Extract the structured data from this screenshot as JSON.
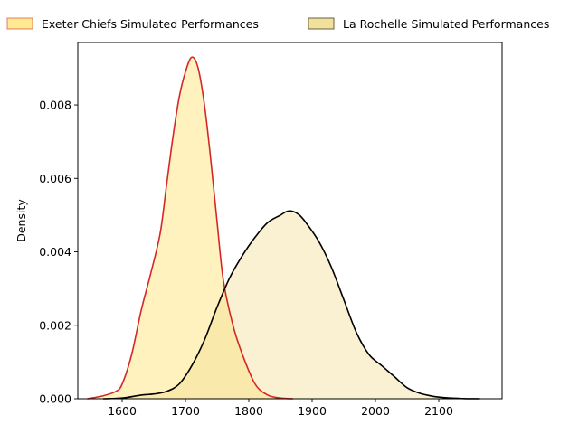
{
  "chart_data": {
    "type": "area",
    "title": "",
    "xlabel": "",
    "ylabel": "Density",
    "xlim": [
      1530,
      2200
    ],
    "ylim": [
      0,
      0.0097
    ],
    "xticks": [
      1600,
      1700,
      1800,
      1900,
      2000,
      2100
    ],
    "yticks": [
      0.0,
      0.002,
      0.004,
      0.006,
      0.008
    ],
    "ytick_labels": [
      "0.000",
      "0.002",
      "0.004",
      "0.006",
      "0.008"
    ],
    "legend_placement": "top, outside plot",
    "grid": false,
    "series": [
      {
        "name": "Exeter Chiefs Simulated Performances",
        "line_color": "#d62728",
        "fill_color": "#ffe680",
        "fill_opacity": 0.5,
        "x": [
          1545,
          1570,
          1590,
          1600,
          1615,
          1630,
          1645,
          1660,
          1670,
          1680,
          1690,
          1700,
          1710,
          1720,
          1730,
          1740,
          1750,
          1760,
          1775,
          1790,
          1810,
          1830,
          1850,
          1870
        ],
        "y": [
          0.0,
          8e-05,
          0.0002,
          0.0004,
          0.0012,
          0.0024,
          0.0034,
          0.0045,
          0.0058,
          0.0071,
          0.0082,
          0.0089,
          0.0093,
          0.009,
          0.008,
          0.0065,
          0.0048,
          0.0032,
          0.002,
          0.0012,
          0.0004,
          0.0001,
          2e-05,
          0.0
        ]
      },
      {
        "name": "La Rochelle Simulated Performances",
        "line_color": "#000000",
        "fill_color": "#f0dc8c",
        "fill_opacity": 0.4,
        "x": [
          1570,
          1600,
          1630,
          1650,
          1670,
          1690,
          1710,
          1730,
          1750,
          1770,
          1790,
          1810,
          1830,
          1850,
          1860,
          1870,
          1880,
          1890,
          1910,
          1930,
          1950,
          1970,
          1990,
          2010,
          2030,
          2050,
          2070,
          2090,
          2110,
          2140,
          2165
        ],
        "y": [
          0.0,
          2e-05,
          0.0001,
          0.00013,
          0.0002,
          0.0004,
          0.0009,
          0.0016,
          0.0025,
          0.0033,
          0.0039,
          0.0044,
          0.0048,
          0.005,
          0.0051,
          0.0051,
          0.005,
          0.0048,
          0.0043,
          0.0036,
          0.0027,
          0.0018,
          0.0012,
          0.0009,
          0.0006,
          0.0003,
          0.00015,
          7e-05,
          3e-05,
          5e-06,
          0.0
        ]
      }
    ]
  },
  "legend": {
    "items": [
      {
        "label": "Exeter Chiefs Simulated Performances",
        "fill": "#ffe680",
        "edge": "#d62728"
      },
      {
        "label": "La Rochelle Simulated Performances",
        "fill": "#f0dc8c",
        "edge": "#6b6040"
      }
    ]
  }
}
